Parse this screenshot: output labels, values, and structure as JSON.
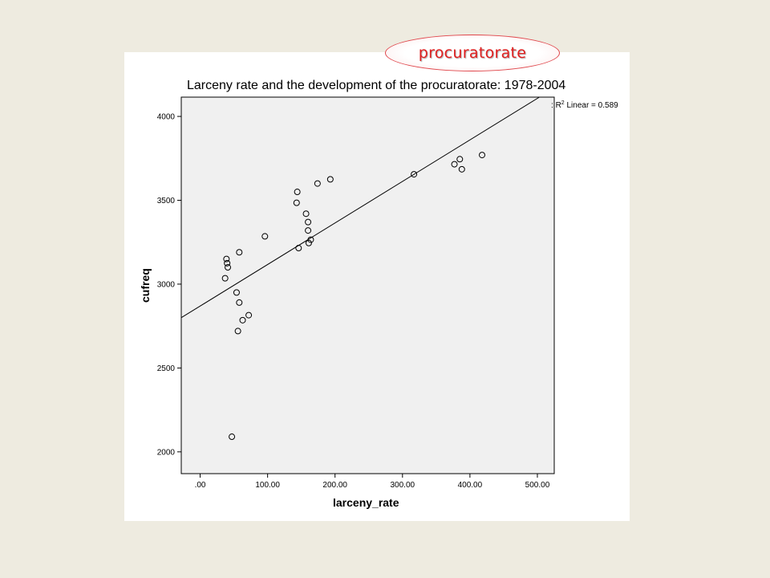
{
  "callout": {
    "label": "procuratorate"
  },
  "chart_data": {
    "type": "scatter",
    "title": "Larceny rate and the development of the procuratorate: 1978-2004",
    "xlabel": "larceny_rate",
    "ylabel": "cufreq",
    "xlim": [
      -28,
      525
    ],
    "ylim": [
      1870,
      4115
    ],
    "xticks": [
      ".00",
      "100.00",
      "200.00",
      "300.00",
      "400.00",
      "500.00"
    ],
    "xtick_values": [
      0,
      100,
      200,
      300,
      400,
      500
    ],
    "yticks": [
      "2000",
      "2500",
      "3000",
      "3500",
      "4000"
    ],
    "ytick_values": [
      2000,
      2500,
      3000,
      3500,
      4000
    ],
    "fit_line": {
      "label": "R",
      "exponent": "2",
      "suffix": " Linear = 0.589",
      "x": [
        -28,
        503
      ],
      "y": [
        2800,
        4115
      ]
    },
    "marker_color": "#000000",
    "plot_background": "#f0f0f0",
    "points": [
      {
        "x": 37,
        "y": 3035
      },
      {
        "x": 39,
        "y": 3150
      },
      {
        "x": 40,
        "y": 3125
      },
      {
        "x": 41,
        "y": 3100
      },
      {
        "x": 47,
        "y": 2090
      },
      {
        "x": 54,
        "y": 2950
      },
      {
        "x": 56,
        "y": 2720
      },
      {
        "x": 58,
        "y": 2890
      },
      {
        "x": 58,
        "y": 3190
      },
      {
        "x": 63,
        "y": 2785
      },
      {
        "x": 72,
        "y": 2815
      },
      {
        "x": 96,
        "y": 3285
      },
      {
        "x": 143,
        "y": 3485
      },
      {
        "x": 144,
        "y": 3550
      },
      {
        "x": 146,
        "y": 3215
      },
      {
        "x": 157,
        "y": 3420
      },
      {
        "x": 160,
        "y": 3370
      },
      {
        "x": 160,
        "y": 3320
      },
      {
        "x": 161,
        "y": 3245
      },
      {
        "x": 164,
        "y": 3265
      },
      {
        "x": 174,
        "y": 3600
      },
      {
        "x": 193,
        "y": 3625
      },
      {
        "x": 317,
        "y": 3655
      },
      {
        "x": 377,
        "y": 3715
      },
      {
        "x": 385,
        "y": 3745
      },
      {
        "x": 388,
        "y": 3685
      },
      {
        "x": 418,
        "y": 3770
      }
    ]
  }
}
